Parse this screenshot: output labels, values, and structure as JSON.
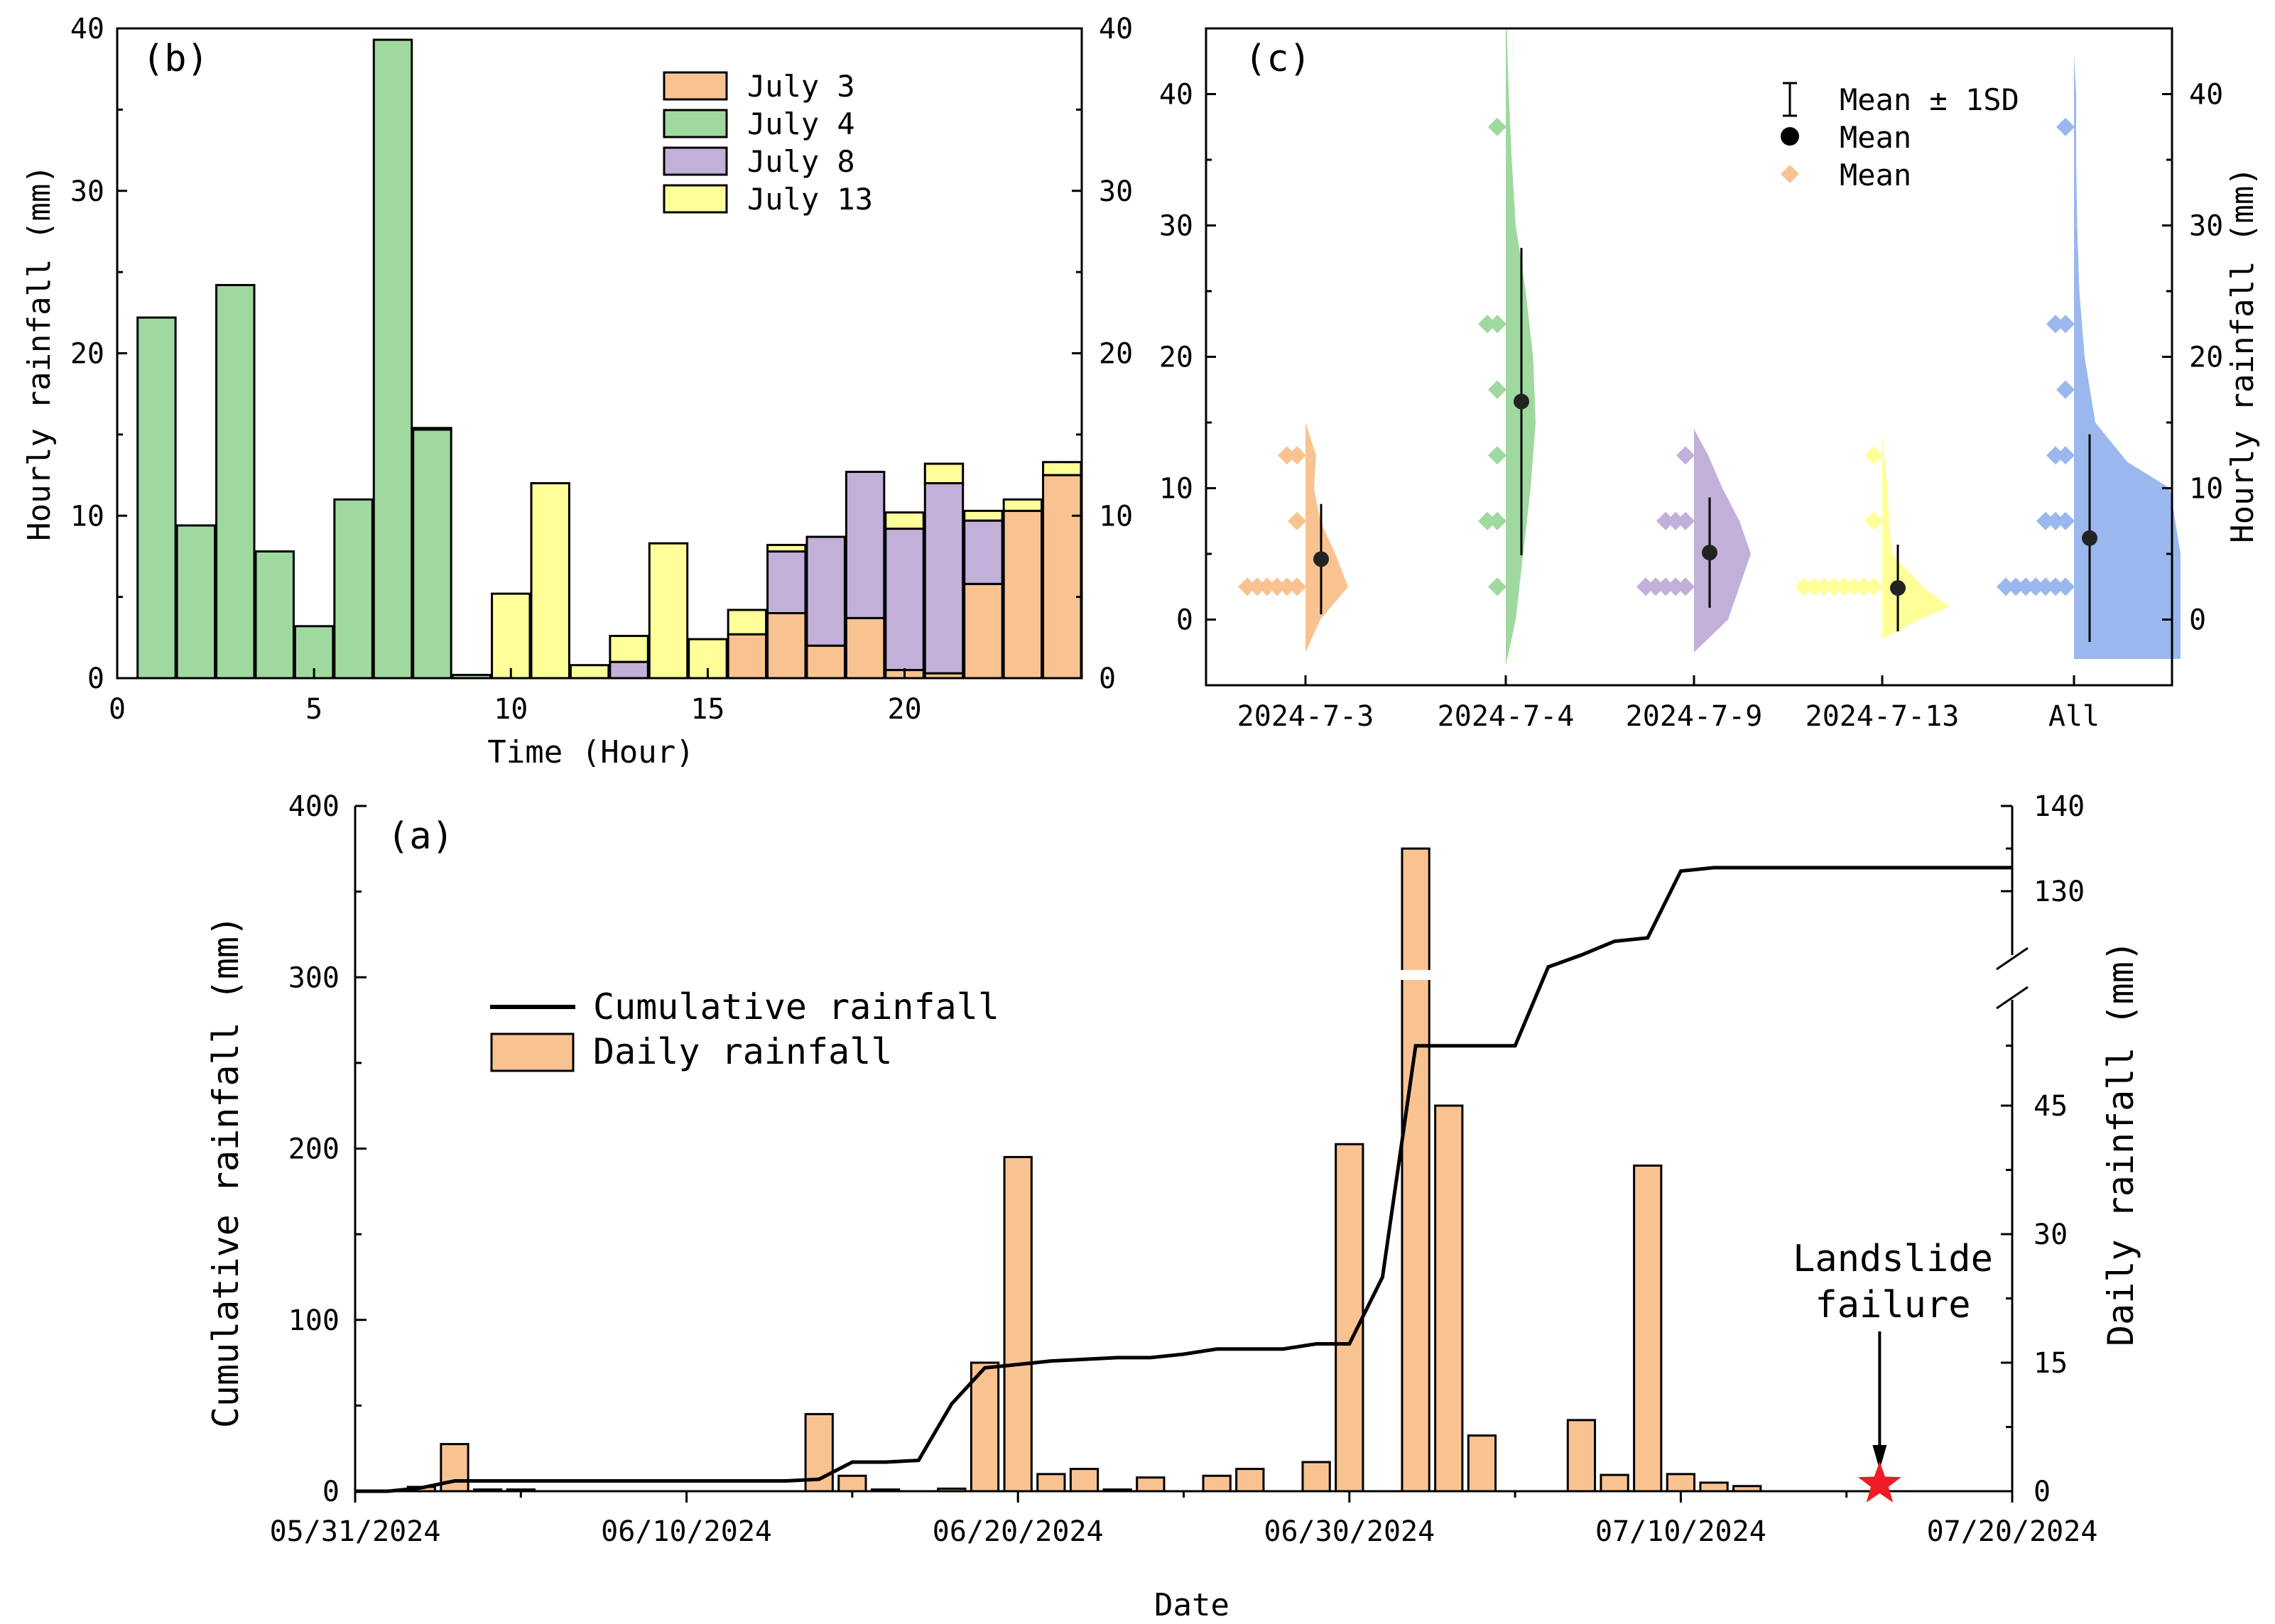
{
  "colors": {
    "july3": "#f9c391",
    "july4": "#9fd99f",
    "july8": "#c2b0d9",
    "july13": "#ffff99",
    "all": "#9ab8ee",
    "daily_bar": "#f9c391",
    "star": "#ee1c24"
  },
  "chart_data": [
    {
      "id": "b",
      "type": "bar",
      "panel_tag": "(b)",
      "title": "",
      "xlabel": "Time (Hour)",
      "ylabel": "Hourly rainfall (mm)",
      "xlim": [
        0,
        24.5
      ],
      "ylim": [
        0,
        40
      ],
      "x_ticks": [
        "0",
        "5",
        "10",
        "15",
        "20"
      ],
      "x_tick_values": [
        0,
        5,
        10,
        15,
        20
      ],
      "y_ticks": [
        "0",
        "10",
        "20",
        "30",
        "40"
      ],
      "y_tick_values": [
        0,
        10,
        20,
        30,
        40
      ],
      "right_y_ticks": [
        "0",
        "10",
        "20",
        "30",
        "40"
      ],
      "legend_position": "top-right",
      "hours": [
        1,
        2,
        3,
        4,
        5,
        6,
        7,
        8,
        9,
        10,
        11,
        12,
        13,
        14,
        15,
        16,
        17,
        18,
        19,
        20,
        21,
        22,
        23,
        24
      ],
      "series": [
        {
          "name": "July 3",
          "color_key": "july3",
          "values": [
            0,
            0,
            0,
            0,
            0,
            0,
            0,
            0,
            0,
            0,
            0,
            0,
            0,
            0,
            0,
            2.7,
            4.0,
            2.0,
            3.7,
            0.5,
            0.3,
            5.8,
            10.3,
            12.5
          ]
        },
        {
          "name": "July 4",
          "color_key": "july4",
          "values": [
            22.2,
            9.4,
            24.2,
            7.8,
            3.2,
            11.0,
            39.3,
            15.3,
            0.2,
            0,
            0,
            0,
            0,
            0,
            0,
            0,
            0,
            0,
            0,
            0,
            0,
            0,
            0,
            0
          ]
        },
        {
          "name": "July 8",
          "color_key": "july8",
          "values": [
            0,
            0,
            0,
            0,
            0,
            0,
            0,
            0,
            0,
            0,
            0,
            0,
            1.0,
            0,
            0,
            0,
            3.8,
            6.7,
            9.0,
            8.7,
            11.7,
            3.9,
            0,
            0
          ]
        },
        {
          "name": "July 13",
          "color_key": "july13",
          "values": [
            0,
            0,
            0,
            0,
            0,
            0,
            0,
            0.1,
            0,
            5.2,
            12.0,
            0.8,
            1.6,
            8.3,
            2.4,
            1.5,
            0.4,
            0,
            0,
            1.0,
            1.2,
            0.6,
            0.7,
            0.8
          ]
        }
      ]
    },
    {
      "id": "c",
      "type": "scatter",
      "panel_tag": "(c)",
      "title": "",
      "xlabel": "",
      "ylabel": "Hourly rainfall (mm)",
      "ylim": [
        -5,
        45
      ],
      "y_ticks": [
        "0",
        "10",
        "20",
        "30",
        "40"
      ],
      "y_tick_values": [
        0,
        10,
        20,
        30,
        40
      ],
      "categories": [
        "2024-7-3",
        "2024-7-4",
        "2024-7-9",
        "2024-7-13",
        "All"
      ],
      "legend": [
        "Mean ± 1SD",
        "Mean",
        "Mean"
      ],
      "legend_position": "top-right",
      "groups": [
        {
          "category": "2024-7-3",
          "color_key": "july3",
          "mean": 4.6,
          "sd": 4.2,
          "points": [
            2.5,
            2.5,
            2.5,
            2.5,
            2.5,
            2.5,
            7.5,
            12.5,
            12.5
          ],
          "density": [
            [
              -2.5,
              0.0
            ],
            [
              0,
              0.35
            ],
            [
              2.5,
              1.0
            ],
            [
              5,
              0.7
            ],
            [
              7.5,
              0.35
            ],
            [
              10,
              0.2
            ],
            [
              12.5,
              0.25
            ],
            [
              15,
              0.0
            ]
          ]
        },
        {
          "category": "2024-7-4",
          "color_key": "july4",
          "mean": 16.6,
          "sd": 11.7,
          "points": [
            2.5,
            7.5,
            7.5,
            12.5,
            17.5,
            22.5,
            22.5,
            37.5
          ],
          "density": [
            [
              -3.5,
              0.0
            ],
            [
              0,
              0.2
            ],
            [
              5,
              0.35
            ],
            [
              10,
              0.5
            ],
            [
              15,
              0.6
            ],
            [
              20,
              0.55
            ],
            [
              25,
              0.4
            ],
            [
              30,
              0.2
            ],
            [
              35,
              0.12
            ],
            [
              40,
              0.06
            ],
            [
              45,
              0.02
            ]
          ]
        },
        {
          "category": "2024-7-9",
          "color_key": "july8",
          "mean": 5.1,
          "sd": 4.2,
          "points": [
            2.5,
            2.5,
            2.5,
            2.5,
            2.5,
            7.5,
            7.5,
            7.5,
            12.5
          ],
          "density": [
            [
              -2.5,
              0.0
            ],
            [
              0,
              0.6
            ],
            [
              2.5,
              0.8
            ],
            [
              5,
              1.0
            ],
            [
              7.5,
              0.8
            ],
            [
              10,
              0.5
            ],
            [
              12.5,
              0.25
            ],
            [
              14.5,
              0.0
            ]
          ]
        },
        {
          "category": "2024-7-13",
          "color_key": "july13",
          "mean": 2.4,
          "sd": 3.3,
          "points": [
            2.5,
            2.5,
            2.5,
            2.5,
            2.5,
            2.5,
            2.5,
            2.5,
            7.5,
            12.5
          ],
          "density": [
            [
              -1.5,
              0.0
            ],
            [
              0,
              0.55
            ],
            [
              1,
              1.0
            ],
            [
              2.5,
              0.6
            ],
            [
              5,
              0.15
            ],
            [
              7.5,
              0.1
            ],
            [
              10,
              0.08
            ],
            [
              14,
              0.0
            ]
          ]
        },
        {
          "category": "All",
          "color_key": "all",
          "mean": 6.2,
          "sd": 7.9,
          "points": [
            2.5,
            2.5,
            2.5,
            2.5,
            2.5,
            2.5,
            2.5,
            7.5,
            7.5,
            7.5,
            12.5,
            12.5,
            17.5,
            22.5,
            22.5,
            37.5
          ],
          "density": [
            [
              -3,
              1.0
            ],
            [
              0,
              1.0
            ],
            [
              5,
              1.0
            ],
            [
              10,
              0.9
            ],
            [
              12,
              0.5
            ],
            [
              15,
              0.2
            ],
            [
              20,
              0.1
            ],
            [
              25,
              0.05
            ],
            [
              30,
              0.03
            ],
            [
              35,
              0.02
            ],
            [
              40,
              0.02
            ],
            [
              43,
              0.0
            ]
          ]
        }
      ]
    },
    {
      "id": "a",
      "type": "bar",
      "panel_tag": "(a)",
      "title": "",
      "xlabel": "Date",
      "ylabel": "Cumulative rainfall (mm)",
      "y2label": "Daily rainfall (mm)",
      "ylim": [
        0,
        400
      ],
      "y_ticks": [
        "0",
        "100",
        "200",
        "300",
        "400"
      ],
      "y_tick_values": [
        0,
        100,
        200,
        300,
        400
      ],
      "y2_ticks": [
        "0",
        "15",
        "30",
        "45",
        "130",
        "140"
      ],
      "y2_tick_values": [
        0,
        15,
        30,
        45,
        130,
        140
      ],
      "y2_break": [
        55,
        120
      ],
      "x_ticks": [
        "05/31/2024",
        "06/10/2024",
        "06/20/2024",
        "06/30/2024",
        "07/10/2024",
        "07/20/2024"
      ],
      "x_tick_values": [
        0,
        10,
        20,
        30,
        40,
        50
      ],
      "legend": [
        "Cumulative rainfall",
        "Daily rainfall"
      ],
      "legend_position": "upper-left",
      "daily_days": [
        2,
        3,
        4,
        5,
        14,
        15,
        16,
        18,
        19,
        20,
        21,
        22,
        23,
        24,
        26,
        27,
        29,
        30,
        32,
        33,
        34,
        37,
        38,
        39,
        40,
        41,
        42
      ],
      "daily_values": [
        0.5,
        5.5,
        0.2,
        0.2,
        9.0,
        1.8,
        0.2,
        0.3,
        15.0,
        39.0,
        2.0,
        2.6,
        0.2,
        1.6,
        1.8,
        2.6,
        3.4,
        40.5,
        135.0,
        45.0,
        6.5,
        8.3,
        1.9,
        38.0,
        2.0,
        1.0,
        0.6
      ],
      "cumulative_days": [
        0,
        1,
        2,
        3,
        4,
        5,
        6,
        7,
        8,
        9,
        10,
        11,
        12,
        13,
        14,
        15,
        16,
        17,
        18,
        19,
        20,
        21,
        22,
        23,
        24,
        25,
        26,
        27,
        28,
        29,
        30,
        31,
        32,
        33,
        34,
        35,
        36,
        37,
        38,
        39,
        40,
        41,
        42,
        43,
        44,
        45,
        46,
        47,
        48,
        49,
        50
      ],
      "cumulative_values": [
        0,
        0,
        2,
        6,
        6,
        6,
        6,
        6,
        6,
        6,
        6,
        6,
        6,
        6,
        7,
        17,
        17,
        18,
        51,
        72,
        74,
        76,
        77,
        78,
        78,
        80,
        83,
        83,
        83,
        86,
        86,
        125,
        260,
        260,
        260,
        260,
        306,
        313,
        321,
        323,
        362,
        364,
        364,
        364,
        364,
        364,
        364,
        364,
        364,
        364,
        364
      ],
      "annotation": {
        "line1": "Landslide",
        "line2": "failure",
        "day": 46
      }
    }
  ]
}
